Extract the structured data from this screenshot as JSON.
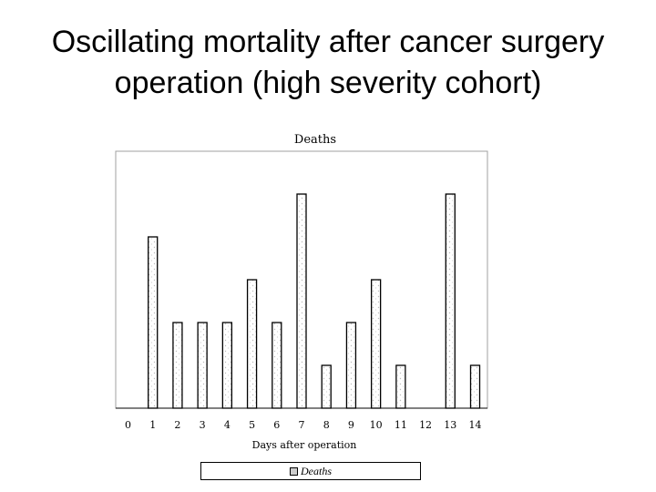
{
  "slide": {
    "title_line1": "Oscillating mortality after cancer surgery",
    "title_line2": "operation (high severity cohort)"
  },
  "chart_data": {
    "type": "bar",
    "title": "Deaths",
    "xlabel": "Days after operation",
    "ylabel": "",
    "categories": [
      "0",
      "1",
      "2",
      "3",
      "4",
      "5",
      "6",
      "7",
      "8",
      "9",
      "10",
      "11",
      "12",
      "13",
      "14"
    ],
    "series": [
      {
        "name": "Deaths",
        "values": [
          0,
          4,
          2,
          2,
          2,
          3,
          2,
          5,
          1,
          2,
          3,
          1,
          0,
          5,
          1
        ]
      }
    ],
    "ylim": [
      0,
      6
    ],
    "grid": false,
    "legend_position": "bottom",
    "bar_fill": "#ffffff",
    "bar_edge": "#000000"
  }
}
